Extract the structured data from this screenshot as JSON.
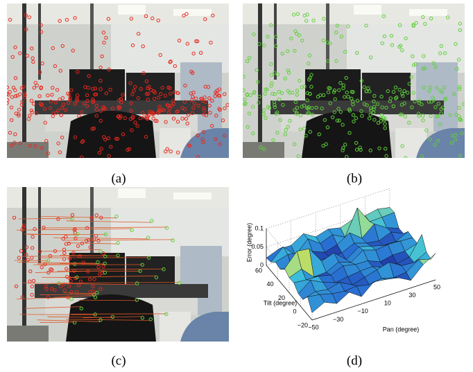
{
  "panels": [
    {
      "caption": "(a)"
    },
    {
      "caption": "(b)"
    },
    {
      "caption": "(c)"
    },
    {
      "caption": "(d)"
    }
  ],
  "plot": {
    "z_label": "Error (degree)",
    "y_label": "Tilt (degree)",
    "x_label": "Pan (degree)",
    "z_ticks": [
      "0.1",
      "0.05",
      "0"
    ],
    "y_ticks": [
      "60",
      "40",
      "20",
      "0",
      "−20"
    ],
    "x_ticks": [
      "−50",
      "−30",
      "−10",
      "10",
      "30",
      "50"
    ]
  }
}
